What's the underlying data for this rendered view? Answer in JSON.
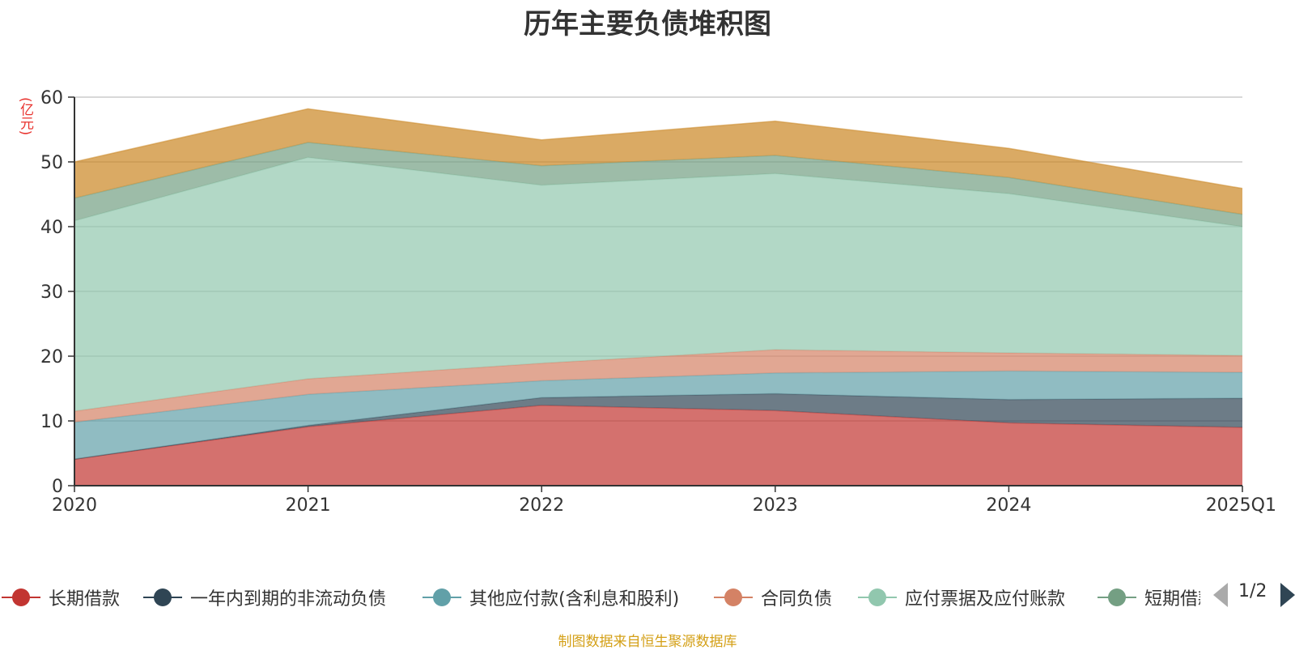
{
  "chart_data": {
    "type": "area",
    "stacked": true,
    "title": "历年主要负债堆积图",
    "unit": "(亿元)",
    "categories": [
      "2020",
      "2021",
      "2022",
      "2023",
      "2024",
      "2025Q1"
    ],
    "ylim": [
      0,
      60
    ],
    "yticks": [
      0,
      10,
      20,
      30,
      40,
      50,
      60
    ],
    "grid": true,
    "legend_position": "bottom",
    "series": [
      {
        "name": "长期借款",
        "color": "#c23531",
        "values": [
          4.1,
          9.1,
          12.4,
          11.6,
          9.7,
          9.0
        ]
      },
      {
        "name": "一年内到期的非流动负债",
        "color": "#2f4554",
        "values": [
          0.0,
          0.2,
          1.2,
          2.6,
          3.6,
          4.5
        ]
      },
      {
        "name": "其他应付款(含利息和股利)",
        "color": "#61a0a8",
        "values": [
          5.7,
          4.8,
          2.6,
          3.2,
          4.4,
          4.0
        ]
      },
      {
        "name": "合同负债",
        "color": "#d48265",
        "values": [
          1.7,
          2.4,
          2.7,
          3.6,
          2.8,
          2.6
        ]
      },
      {
        "name": "应付票据及应付账款",
        "color": "#91c7ae",
        "values": [
          29.4,
          34.2,
          27.5,
          27.2,
          24.6,
          19.9
        ]
      },
      {
        "name": "短期借款",
        "color": "#749f83",
        "values": [
          3.5,
          2.3,
          3.0,
          2.8,
          2.5,
          1.9
        ]
      },
      {
        "color": "#ca8622",
        "values": [
          5.6,
          5.2,
          4.0,
          5.3,
          4.5,
          4.0
        ]
      }
    ]
  },
  "legend": {
    "page_indicator": "1/2"
  },
  "source_note": "制图数据来自恒生聚源数据库"
}
